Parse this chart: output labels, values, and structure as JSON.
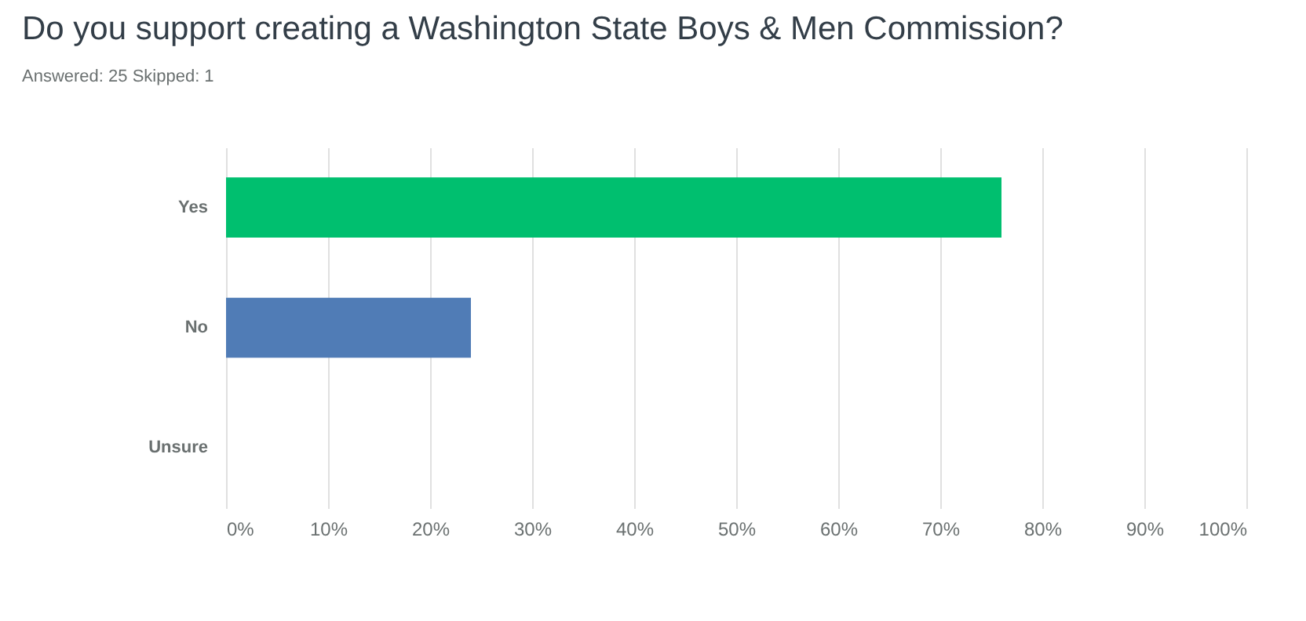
{
  "chart_data": {
    "type": "bar",
    "orientation": "horizontal",
    "title": "Do you support creating a Washington State Boys & Men Commission?",
    "subtitle": "Answered: 25     Skipped: 1",
    "categories": [
      "Yes",
      "No",
      "Unsure"
    ],
    "values": [
      76,
      24,
      0
    ],
    "colors": [
      "#00bf6f",
      "#507cb6",
      "#a3a3a3"
    ],
    "xlim": [
      0,
      100
    ],
    "xticks": [
      {
        "value": 0,
        "label": "0%"
      },
      {
        "value": 10,
        "label": "10%"
      },
      {
        "value": 20,
        "label": "20%"
      },
      {
        "value": 30,
        "label": "30%"
      },
      {
        "value": 40,
        "label": "40%"
      },
      {
        "value": 50,
        "label": "50%"
      },
      {
        "value": 60,
        "label": "60%"
      },
      {
        "value": 70,
        "label": "70%"
      },
      {
        "value": 80,
        "label": "80%"
      },
      {
        "value": 90,
        "label": "90%"
      },
      {
        "value": 100,
        "label": "100%"
      }
    ],
    "grid": "x"
  }
}
